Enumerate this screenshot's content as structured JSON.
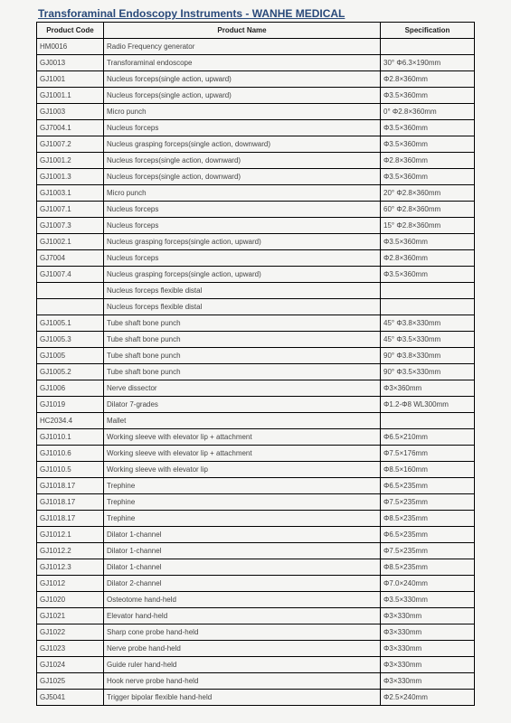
{
  "title": "Transforaminal Endoscopy Instruments - WANHE MEDICAL",
  "headers": {
    "code": "Product Code",
    "name": "Product Name",
    "spec": "Specification"
  },
  "rows": [
    {
      "code": "HM0016",
      "name": "Radio Frequency generator",
      "spec": ""
    },
    {
      "code": "GJ0013",
      "name": "Transforaminal endoscope",
      "spec": " 30° Φ6.3×190mm"
    },
    {
      "code": "GJ1001",
      "name": "Nucleus forceps(single action, upward)",
      "spec": "Φ2.8×360mm"
    },
    {
      "code": "GJ1001.1",
      "name": "Nucleus forceps(single action, upward)",
      "spec": "Φ3.5×360mm"
    },
    {
      "code": "GJ1003",
      "name": "Micro punch",
      "spec": " 0° Φ2.8×360mm"
    },
    {
      "code": "GJ7004.1",
      "name": "Nucleus forceps",
      "spec": "Φ3.5×360mm"
    },
    {
      "code": "GJ1007.2",
      "name": "Nucleus grasping forceps(single action, downward)",
      "spec": "Φ3.5×360mm"
    },
    {
      "code": "GJ1001.2",
      "name": "Nucleus forceps(single action, downward)",
      "spec": "Φ2.8×360mm"
    },
    {
      "code": "GJ1001.3",
      "name": "Nucleus forceps(single action, downward)",
      "spec": "Φ3.5×360mm"
    },
    {
      "code": "GJ1003.1",
      "name": "Micro punch",
      "spec": " 20° Φ2.8×360mm"
    },
    {
      "code": "GJ1007.1",
      "name": "Nucleus forceps",
      "spec": " 60° Φ2.8×360mm"
    },
    {
      "code": "GJ1007.3",
      "name": "Nucleus forceps",
      "spec": " 15° Φ2.8×360mm"
    },
    {
      "code": "GJ1002.1",
      "name": "Nucleus grasping forceps(single action, upward)",
      "spec": "Φ3.5×360mm"
    },
    {
      "code": "GJ7004",
      "name": "Nucleus forceps",
      "spec": "Φ2.8×360mm"
    },
    {
      "code": "GJ1007.4",
      "name": "Nucleus grasping forceps(single action, upward)",
      "spec": "Φ3.5×360mm"
    },
    {
      "code": "",
      "name": "Nucleus forceps flexible distal",
      "spec": ""
    },
    {
      "code": "",
      "name": "Nucleus forceps flexible distal",
      "spec": ""
    },
    {
      "code": "GJ1005.1",
      "name": "Tube shaft bone punch",
      "spec": " 45° Φ3.8×330mm"
    },
    {
      "code": "GJ1005.3",
      "name": "Tube shaft bone punch",
      "spec": " 45° Φ3.5×330mm"
    },
    {
      "code": "GJ1005",
      "name": "Tube shaft bone punch",
      "spec": " 90° Φ3.8×330mm"
    },
    {
      "code": "GJ1005.2",
      "name": "Tube shaft bone punch",
      "spec": " 90° Φ3.5×330mm"
    },
    {
      "code": "GJ1006",
      "name": "Nerve dissector",
      "spec": "Φ3×360mm"
    },
    {
      "code": "GJ1019",
      "name": "Dilator 7-grades",
      "spec": "Φ1.2-Φ8 WL300mm"
    },
    {
      "code": "HC2034.4",
      "name": "Mallet",
      "spec": ""
    },
    {
      "code": "GJ1010.1",
      "name": "Working sleeve with elevator lip + attachment",
      "spec": "Φ6.5×210mm"
    },
    {
      "code": "GJ1010.6",
      "name": "Working sleeve with elevator lip + attachment",
      "spec": "Φ7.5×176mm"
    },
    {
      "code": "GJ1010.5",
      "name": "Working sleeve with elevator lip",
      "spec": "Φ8.5×160mm"
    },
    {
      "code": "GJ1018.17",
      "name": "Trephine",
      "spec": "Φ6.5×235mm"
    },
    {
      "code": "GJ1018.17",
      "name": "Trephine",
      "spec": "Φ7.5×235mm"
    },
    {
      "code": "GJ1018.17",
      "name": "Trephine",
      "spec": "Φ8.5×235mm"
    },
    {
      "code": "GJ1012.1",
      "name": "Dilator  1-channel",
      "spec": "Φ6.5×235mm"
    },
    {
      "code": "GJ1012.2",
      "name": "Dilator  1-channel",
      "spec": "Φ7.5×235mm"
    },
    {
      "code": "GJ1012.3",
      "name": "Dilator  1-channel",
      "spec": "Φ8.5×235mm"
    },
    {
      "code": "GJ1012",
      "name": "Dilator  2-channel",
      "spec": "Φ7.0×240mm"
    },
    {
      "code": "GJ1020",
      "name": "Osteotome  hand-held",
      "spec": "Φ3.5×330mm"
    },
    {
      "code": "GJ1021",
      "name": "Elevator   hand-held",
      "spec": "Φ3×330mm"
    },
    {
      "code": "GJ1022",
      "name": "Sharp cone probe   hand-held",
      "spec": "Φ3×330mm"
    },
    {
      "code": "GJ1023",
      "name": "Nerve probe   hand-held",
      "spec": "Φ3×330mm"
    },
    {
      "code": "GJ1024",
      "name": "Guide ruler  hand-held",
      "spec": "Φ3×330mm"
    },
    {
      "code": "GJ1025",
      "name": "Hook nerve probe   hand-held",
      "spec": "Φ3×330mm"
    },
    {
      "code": "GJ5041",
      "name": "Trigger bipolar flexible  hand-held",
      "spec": "Φ2.5×240mm"
    }
  ]
}
